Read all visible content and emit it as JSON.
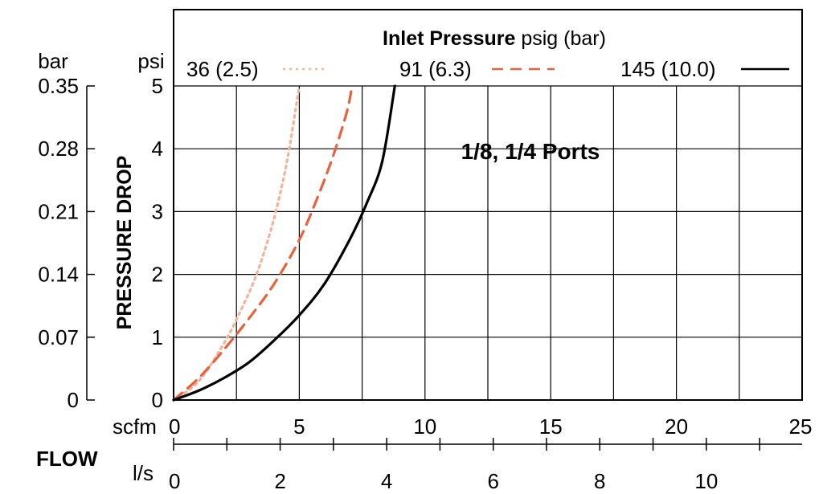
{
  "chart_data": {
    "type": "line",
    "legend_title_bold": "Inlet Pressure",
    "legend_title_rest": " psig (bar)",
    "annotation": "1/8, 1/4 Ports",
    "ylabel": "PRESSURE DROP",
    "xlabel": "FLOW",
    "y_units_primary": "psi",
    "y_units_secondary": "bar",
    "x_units_primary": "scfm",
    "x_units_secondary": "l/s",
    "xlim": [
      0,
      25
    ],
    "ylim": [
      0,
      5
    ],
    "x_ticks": [
      "0",
      "5",
      "10",
      "15",
      "20",
      "25"
    ],
    "y_ticks": [
      "0",
      "1",
      "2",
      "3",
      "4",
      "5"
    ],
    "y2_ticks": [
      "0",
      "0.07",
      "0.14",
      "0.21",
      "0.28",
      "0.35"
    ],
    "x2_ticks": [
      "0",
      "2",
      "4",
      "6",
      "8",
      "10"
    ],
    "grid": true,
    "series": [
      {
        "name": "36 (2.5)",
        "color": "#f4b39a",
        "style": "dotted",
        "x": [
          0,
          1,
          2,
          2.7,
          3.3,
          3.9,
          4.3,
          4.6,
          5.0
        ],
        "y": [
          0,
          0.3,
          0.9,
          1.45,
          2.0,
          2.75,
          3.4,
          4.0,
          5.0
        ]
      },
      {
        "name": "91 (6.3)",
        "color": "#e8633d",
        "style": "dashed",
        "x": [
          0,
          1,
          2,
          3,
          4,
          5,
          5.8,
          6.4,
          6.9,
          7.1
        ],
        "y": [
          0,
          0.35,
          0.8,
          1.3,
          1.85,
          2.55,
          3.3,
          3.95,
          4.6,
          5.0
        ]
      },
      {
        "name": "145 (10.0)",
        "color": "#000000",
        "style": "solid",
        "x": [
          0,
          1,
          2,
          3,
          4,
          5,
          6,
          7,
          7.7,
          8.3,
          8.8
        ],
        "y": [
          0,
          0.15,
          0.35,
          0.6,
          0.95,
          1.35,
          1.85,
          2.55,
          3.15,
          3.8,
          5.0
        ]
      }
    ]
  }
}
